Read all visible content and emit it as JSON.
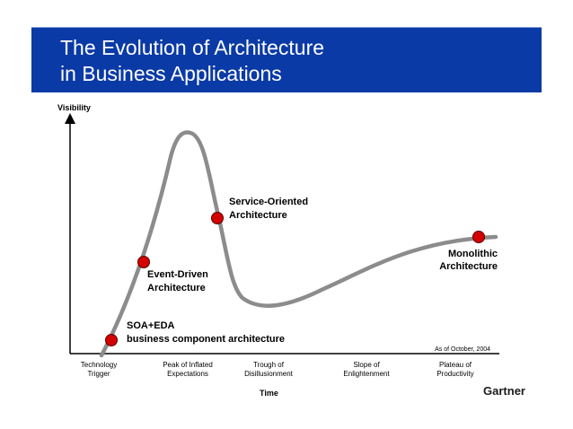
{
  "slide": {
    "title_line1": "The Evolution of Architecture",
    "title_line2": "in Business Applications",
    "title_bar_color": "#0a3aa6"
  },
  "diagram": {
    "y_axis_label": "Visibility",
    "x_axis_label": "Time",
    "phases": [
      {
        "line1": "Technology",
        "line2": "Trigger"
      },
      {
        "line1": "Peak of Inflated",
        "line2": "Expectations"
      },
      {
        "line1": "Trough of",
        "line2": "Disillusionment"
      },
      {
        "line1": "Slope of",
        "line2": "Enlightenment"
      },
      {
        "line1": "Plateau of",
        "line2": "Productivity"
      }
    ],
    "markers": [
      {
        "line1": "SOA+EDA",
        "line2": "business component architecture",
        "phase": "Technology Trigger"
      },
      {
        "line1": "Event-Driven",
        "line2": "Architecture",
        "phase": "Peak of Inflated Expectations"
      },
      {
        "line1": "Service-Oriented",
        "line2": "Architecture",
        "phase": "Peak of Inflated Expectations"
      },
      {
        "line1": "Monolithic",
        "line2": "Architecture",
        "phase": "Plateau of Productivity"
      }
    ],
    "date_note": "As of October, 2004",
    "brand": "Gartner",
    "marker_color": "#d40000",
    "curve_color": "#8c8c8c"
  }
}
